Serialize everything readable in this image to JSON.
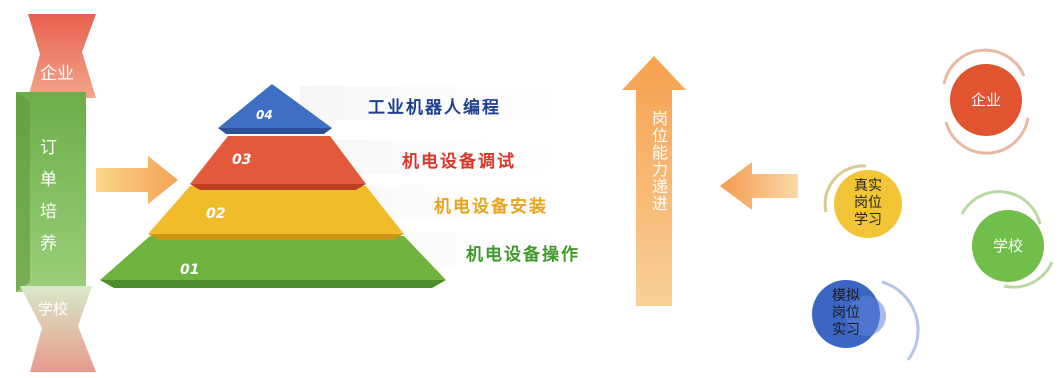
{
  "banner": {
    "top": "企业",
    "middle": [
      "订",
      "单",
      "培",
      "养"
    ],
    "bottom": "学校"
  },
  "pyramid": [
    {
      "number": "04",
      "label": "工业机器人编程",
      "color": "#3f6fc2",
      "label_color": "#1f3f8f"
    },
    {
      "number": "03",
      "label": "机电设备调试",
      "color": "#e4593a",
      "label_color": "#d8372a"
    },
    {
      "number": "02",
      "label": "机电设备安装",
      "color": "#f1bf2c",
      "label_color": "#e7a41c"
    },
    {
      "number": "01",
      "label": "机电设备操作",
      "color": "#73b83f",
      "label_color": "#3f9a2c"
    }
  ],
  "arrow_label": "岗位能力递进",
  "right": {
    "enterprise": "企业",
    "real_job": [
      "真实",
      "岗位",
      "学习"
    ],
    "school": "学校",
    "sim_job": [
      "模拟",
      "岗位",
      "实习"
    ]
  },
  "colors": {
    "banner_green": "#7ab85a",
    "banner_red": "#e3756a",
    "arrow_orange": "#f5a45c",
    "enterprise_circle": "#e2532f",
    "real_job_circle": "#f2c537",
    "school_circle": "#6fbf4a",
    "sim_job_circle": "#3c66c4"
  }
}
